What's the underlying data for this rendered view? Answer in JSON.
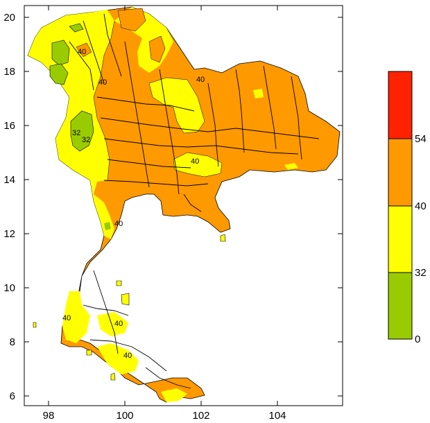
{
  "map": {
    "x_ticks": [
      "98",
      "100",
      "102",
      "104"
    ],
    "y_ticks": [
      "20",
      "18",
      "16",
      "14",
      "12",
      "10",
      "8",
      "6"
    ],
    "contour_labels": [
      "40",
      "32",
      "32",
      "40",
      "40",
      "40",
      "40",
      "40",
      "40",
      "40"
    ]
  },
  "colorbar": {
    "bins": [
      {
        "range": "0-32",
        "color": "#99cc00"
      },
      {
        "range": "32-40",
        "color": "#ffff00"
      },
      {
        "range": "40-54",
        "color": "#ff9900"
      },
      {
        "range": "54+",
        "color": "#ff2200"
      }
    ],
    "labels": [
      "54",
      "40",
      "32",
      "0"
    ]
  },
  "colors": {
    "below_32": "#99cc00",
    "32_40": "#ffff00",
    "40_54": "#ff9900",
    "above_54": "#ff2200"
  }
}
